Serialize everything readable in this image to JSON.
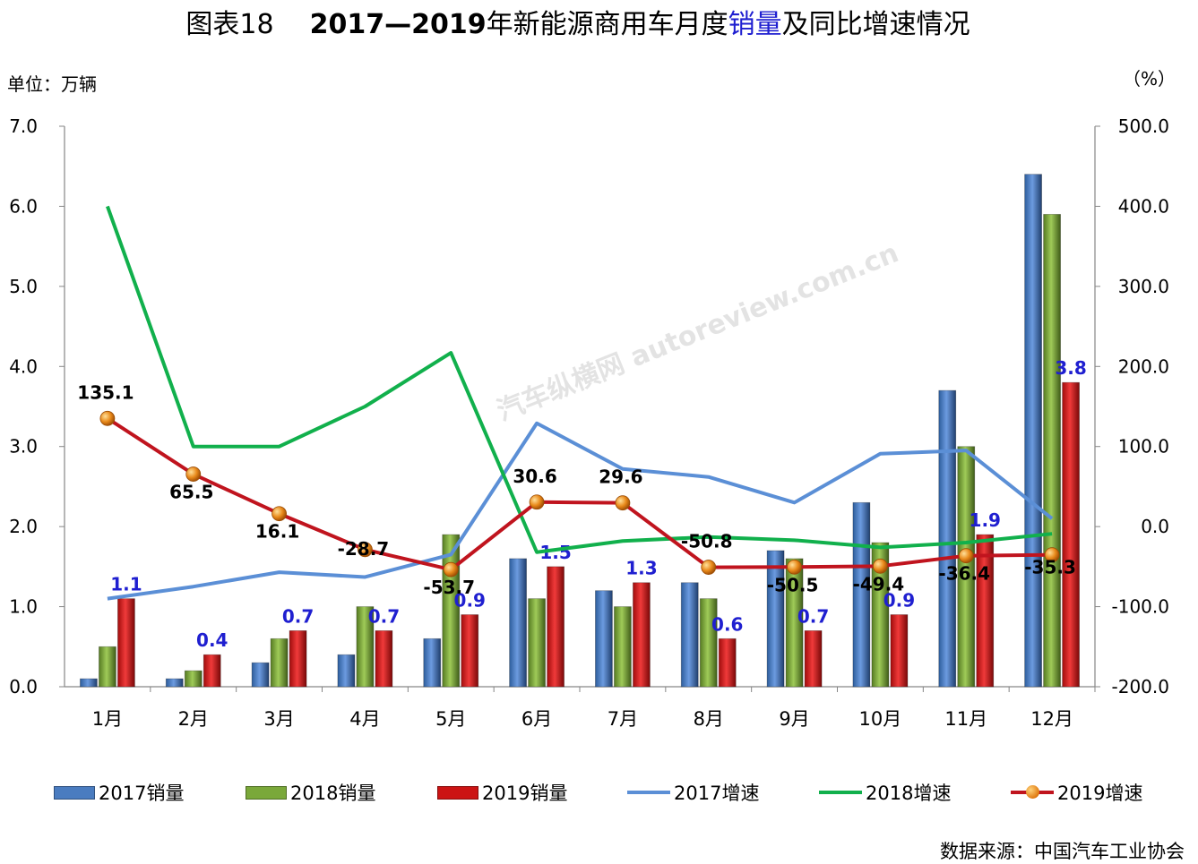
{
  "title": {
    "figure": "图表18",
    "part1": "2017—2019",
    "part2": "年新能源商用车月度",
    "highlight": "销量",
    "part3": "及同比增速情况"
  },
  "unit_left": "单位：万辆",
  "unit_right": "（%）",
  "source": "数据来源：中国汽车工业协会",
  "watermark": "汽车纵横网 autoreview.com.cn",
  "colors": {
    "bar2017": "#4a7cc0",
    "bar2018": "#7aa83a",
    "bar2019": "#cc1414",
    "line2017": "#5b8fd6",
    "line2018": "#11b04c",
    "line2019": "#c0141e",
    "label_blue": "#1f1fd0"
  },
  "chart_data": {
    "type": "bar",
    "categories": [
      "1月",
      "2月",
      "3月",
      "4月",
      "5月",
      "6月",
      "7月",
      "8月",
      "9月",
      "10月",
      "11月",
      "12月"
    ],
    "y_left": {
      "ylim": [
        0,
        7
      ],
      "ticks": [
        "0.0",
        "1.0",
        "2.0",
        "3.0",
        "4.0",
        "5.0",
        "6.0",
        "7.0"
      ]
    },
    "y_right": {
      "ylim": [
        -200,
        500
      ],
      "ticks": [
        "-200.0",
        "-100.0",
        "0.0",
        "100.0",
        "200.0",
        "300.0",
        "400.0",
        "500.0"
      ]
    },
    "grid": false,
    "legend_position": "bottom",
    "bar_series": [
      {
        "name": "2017销量",
        "values": [
          0.1,
          0.1,
          0.3,
          0.4,
          0.6,
          1.6,
          1.2,
          1.3,
          1.7,
          2.3,
          3.7,
          6.4
        ]
      },
      {
        "name": "2018销量",
        "values": [
          0.5,
          0.2,
          0.6,
          1.0,
          1.9,
          1.1,
          1.0,
          1.1,
          1.6,
          1.8,
          3.0,
          5.9
        ]
      },
      {
        "name": "2019销量",
        "values": [
          1.1,
          0.4,
          0.7,
          0.7,
          0.9,
          1.5,
          1.3,
          0.6,
          0.7,
          0.9,
          1.9,
          3.8
        ],
        "labels": [
          "1.1",
          "0.4",
          "0.7",
          "0.7",
          "0.9",
          "1.5",
          "1.3",
          "0.6",
          "0.7",
          "0.9",
          "1.9",
          "3.8"
        ]
      }
    ],
    "line_series": [
      {
        "name": "2017增速",
        "axis": "right",
        "values": [
          -90,
          -75,
          -57,
          -63,
          -35,
          129,
          72,
          62,
          30,
          91,
          95,
          10
        ]
      },
      {
        "name": "2018增速",
        "axis": "right",
        "values": [
          400,
          100,
          100,
          150,
          217,
          -32,
          -18,
          -13,
          -17,
          -26,
          -20,
          -9
        ]
      },
      {
        "name": "2019增速",
        "axis": "right",
        "values": [
          135.1,
          65.5,
          16.1,
          -28.7,
          -53.7,
          30.6,
          29.6,
          -50.8,
          -50.5,
          -49.4,
          -36.4,
          -35.3
        ],
        "labels": [
          "135.1",
          "65.5",
          "16.1",
          "-28.7",
          "-53.7",
          "30.6",
          "29.6",
          "-50.8",
          "-50.5",
          "-49.4",
          "-36.4",
          "-35.3"
        ]
      }
    ]
  }
}
